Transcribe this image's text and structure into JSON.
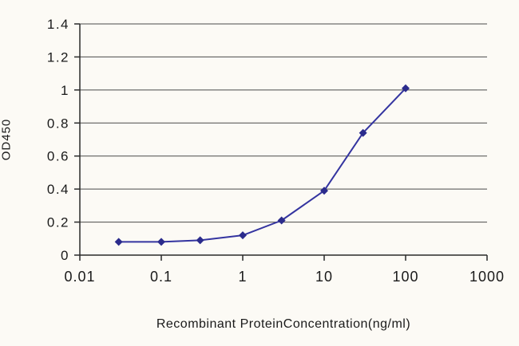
{
  "chart_data": {
    "type": "line",
    "x": [
      0.03,
      0.1,
      0.3,
      1,
      3,
      10,
      30,
      100
    ],
    "y": [
      0.08,
      0.08,
      0.09,
      0.12,
      0.21,
      0.39,
      0.74,
      1.01
    ],
    "title": "",
    "xlabel": "Recombinant ProteinConcentration(ng/ml)",
    "ylabel": "OD450",
    "xscale": "log",
    "xlim": [
      0.01,
      1000
    ],
    "ylim": [
      0,
      1.4
    ],
    "x_ticks": [
      0.01,
      0.1,
      1,
      10,
      100,
      1000
    ],
    "x_tick_labels": [
      "0.01",
      "0.1",
      "1",
      "10",
      "100",
      "1000"
    ],
    "y_ticks": [
      0,
      0.2,
      0.4,
      0.6,
      0.8,
      1,
      1.2,
      1.4
    ],
    "y_tick_labels": [
      "0",
      "0.2",
      "0.4",
      "0.6",
      "0.8",
      "1",
      "1.2",
      "1.4"
    ],
    "grid": "horizontal",
    "legend": "none",
    "marker": "diamond",
    "colors": {
      "line": "#3434a0",
      "marker": "#2b2b8c",
      "axis": "#2a2a2a",
      "grid": "#4a4a4a",
      "text": "#1a1a1a",
      "background": "#fcfaf5"
    }
  }
}
